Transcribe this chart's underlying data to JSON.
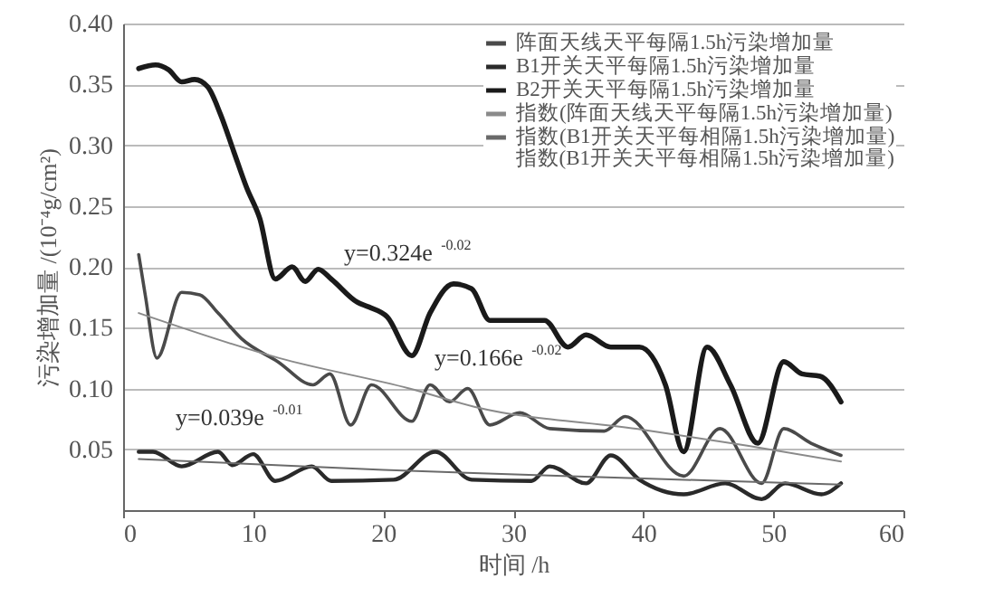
{
  "chart_data": {
    "type": "line",
    "xlabel": "时间 /h",
    "ylabel": "污染增加量 /(10⁻⁴g/cm²)",
    "xlim": [
      0,
      60
    ],
    "xticks": [
      0,
      10,
      20,
      30,
      40,
      50,
      60
    ],
    "ylim": [
      0,
      0.4
    ],
    "yticks": [
      0.05,
      {
        "value": 0.1,
        "label": "0.10"
      },
      0.15,
      {
        "value": 0.2,
        "label": "0.20"
      },
      0.25,
      {
        "value": 0.3,
        "label": "0.30"
      },
      0.35,
      {
        "value": 0.4,
        "label": "0.40"
      }
    ],
    "grid": "y",
    "legend": "top right",
    "marker": "none",
    "line_style": "solid",
    "series": [
      {
        "name": "阵面天线天平每隔1.5h污染增加量",
        "color": "#4a4a4a",
        "x": [
          1.2,
          1.7,
          2.6,
          4.5,
          5.9,
          7.3,
          9.1,
          11.9,
          14.6,
          15.9,
          17.5,
          19.1,
          22.2,
          23.6,
          25.1,
          26.5,
          28.2,
          30.5,
          32.8,
          37,
          38.6,
          43.1,
          45.9,
          49.1,
          50.8,
          52.9,
          55.2
        ],
        "values": [
          0.21,
          0.177,
          0.125,
          0.179,
          0.177,
          0.162,
          0.141,
          0.122,
          0.103,
          0.112,
          0.07,
          0.103,
          0.073,
          0.103,
          0.089,
          0.1,
          0.07,
          0.08,
          0.067,
          0.065,
          0.077,
          0.028,
          0.067,
          0.022,
          0.067,
          0.055,
          0.045
        ]
      },
      {
        "name": "B1开关天平每隔1.5h污染增加量",
        "color": "#2a2a2a",
        "x": [
          1.2,
          2.3,
          4.5,
          7.3,
          8.4,
          10,
          11.7,
          14.5,
          16,
          20.8,
          24,
          26.8,
          31.4,
          32.8,
          35.6,
          37.5,
          39.7,
          43.1,
          46.3,
          49.1,
          50.9,
          53.7,
          55.2
        ],
        "values": [
          0.048,
          0.048,
          0.036,
          0.048,
          0.037,
          0.046,
          0.024,
          0.036,
          0.024,
          0.025,
          0.048,
          0.025,
          0.024,
          0.036,
          0.022,
          0.045,
          0.025,
          0.013,
          0.022,
          0.009,
          0.022,
          0.013,
          0.022
        ]
      },
      {
        "name": "B2开关天平每隔1.5h污染增加量",
        "color": "#1a1a1a",
        "x": [
          1.2,
          2.5,
          3.5,
          4.5,
          5.5,
          6.5,
          7.5,
          8.5,
          9.5,
          10.5,
          11.7,
          13,
          14,
          15,
          16,
          18,
          18.9,
          20.3,
          22.2,
          23.6,
          25.4,
          26.8,
          28.2,
          32.4,
          34.2,
          35.6,
          37.5,
          39.7,
          41.7,
          43.1,
          44.9,
          46.7,
          48.8,
          50.8,
          52.2,
          53.6,
          55.2
        ],
        "values": [
          0.363,
          0.366,
          0.362,
          0.352,
          0.354,
          0.348,
          0.325,
          0.295,
          0.265,
          0.24,
          0.19,
          0.2,
          0.188,
          0.198,
          0.19,
          0.171,
          0.167,
          0.159,
          0.127,
          0.162,
          0.186,
          0.182,
          0.156,
          0.156,
          0.134,
          0.144,
          0.134,
          0.134,
          0.103,
          0.048,
          0.134,
          0.103,
          0.055,
          0.122,
          0.112,
          0.11,
          0.089
        ]
      },
      {
        "name": "指数(阵面天线天平每隔1.5h污染增加量)",
        "color": "#8a8a8a",
        "x": [
          1.2,
          12,
          22,
          27,
          40,
          48,
          55.2
        ],
        "values": [
          0.162,
          0.125,
          0.1,
          0.085,
          0.066,
          0.053,
          0.04
        ]
      },
      {
        "name": "指数(B1开关天平每相隔1.5h污染增加量)",
        "color": "#6a6a6a",
        "x": [
          1.2,
          20,
          40,
          55.2
        ],
        "values": [
          0.042,
          0.033,
          0.026,
          0.021
        ]
      }
    ],
    "annotations": [
      "y=0.324e$^{-0.02}$",
      "y=0.166e$^{-0.02}$",
      "y=0.039e$^{-0.01}$",
      "指数(B1开关天平每相隔1.5h污染增加量)"
    ]
  }
}
